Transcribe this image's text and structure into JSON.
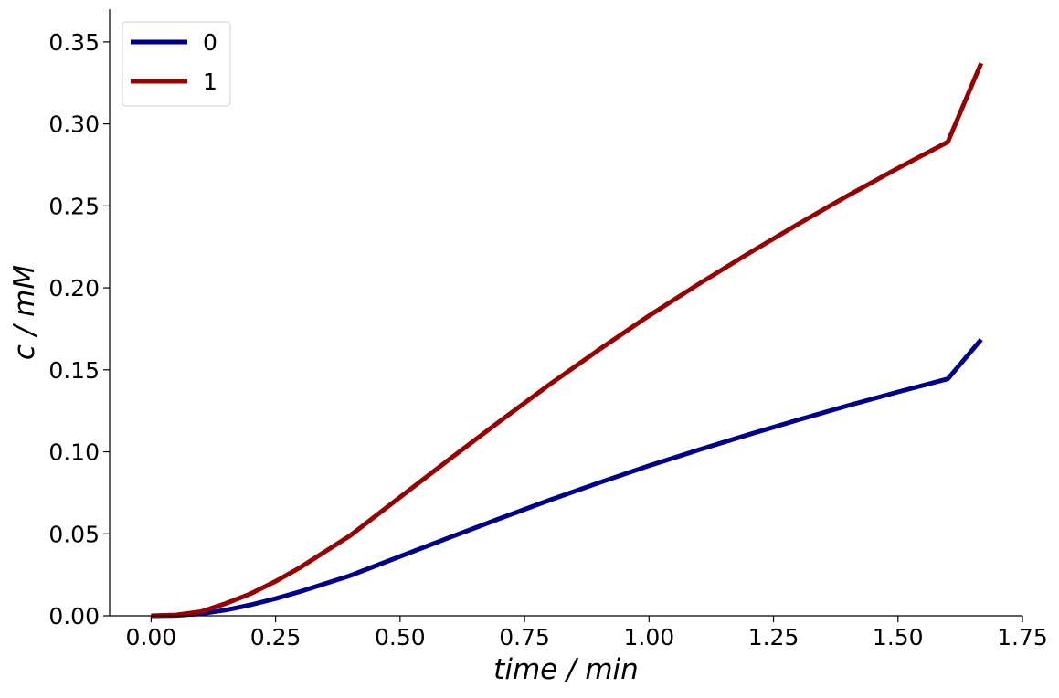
{
  "chart_data": {
    "type": "line",
    "title": "",
    "xlabel": "time / min",
    "ylabel": "c / mM",
    "xlim": [
      -0.0833,
      1.75
    ],
    "ylim": [
      0,
      0.37
    ],
    "xticks": [
      0.0,
      0.25,
      0.5,
      0.75,
      1.0,
      1.25,
      1.5,
      1.75
    ],
    "xtick_labels": [
      "0.00",
      "0.25",
      "0.50",
      "0.75",
      "1.00",
      "1.25",
      "1.50",
      "1.75"
    ],
    "yticks": [
      0.0,
      0.05,
      0.1,
      0.15,
      0.2,
      0.25,
      0.3,
      0.35
    ],
    "ytick_labels": [
      "0.00",
      "0.05",
      "0.10",
      "0.15",
      "0.20",
      "0.25",
      "0.30",
      "0.35"
    ],
    "grid": false,
    "legend_position": "top-left",
    "x": [
      0.0,
      0.05,
      0.1,
      0.15,
      0.2,
      0.25,
      0.3,
      0.4,
      0.5,
      0.6,
      0.7,
      0.8,
      0.9,
      1.0,
      1.1,
      1.2,
      1.3,
      1.4,
      1.5,
      1.6,
      1.667
    ],
    "series": [
      {
        "name": "0",
        "color": "#00008b",
        "values": [
          0.0,
          0.0002,
          0.0012,
          0.0035,
          0.0067,
          0.0105,
          0.0148,
          0.0245,
          0.0362,
          0.0478,
          0.0593,
          0.0705,
          0.0812,
          0.0915,
          0.1012,
          0.1105,
          0.1195,
          0.1282,
          0.1365,
          0.1445,
          0.1685
        ]
      },
      {
        "name": "1",
        "color": "#990000",
        "values": [
          0.0,
          0.0005,
          0.0025,
          0.0075,
          0.0135,
          0.021,
          0.0296,
          0.049,
          0.0724,
          0.0956,
          0.1186,
          0.141,
          0.1624,
          0.183,
          0.2024,
          0.221,
          0.239,
          0.2564,
          0.273,
          0.289,
          0.337
        ]
      }
    ]
  }
}
